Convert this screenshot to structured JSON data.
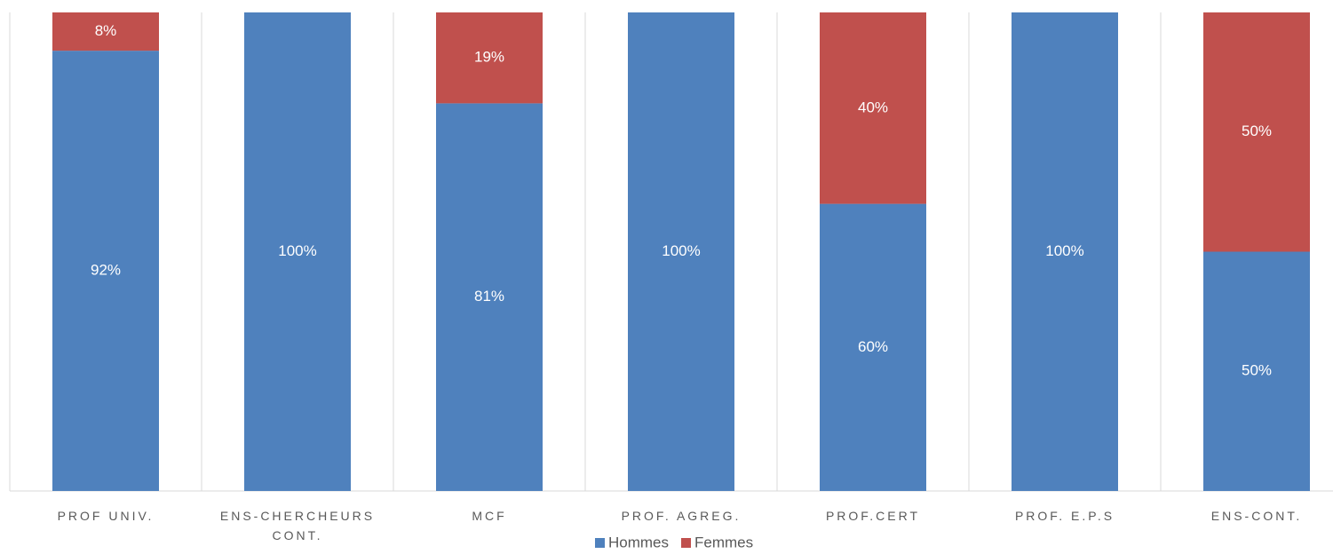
{
  "chart_data": {
    "type": "stacked_bar",
    "categories": [
      "PROF UNIV.",
      "ENS-CHERCHEURS CONT.",
      "MCF",
      "PROF. AGREG.",
      "PROF.CERT",
      "PROF. E.P.S",
      "ENS-CONT."
    ],
    "ylim": [
      0,
      100
    ],
    "grid": true,
    "legend": "bottom",
    "series": [
      {
        "name": "Hommes",
        "color": "#4f81bd",
        "values": [
          92,
          100,
          81,
          100,
          60,
          100,
          50
        ],
        "value_labels": [
          "92%",
          "100%",
          "81%",
          "100%",
          "60%",
          "100%",
          "50%"
        ]
      },
      {
        "name": "Femmes",
        "color": "#c0504d",
        "values": [
          8,
          0,
          19,
          0,
          40,
          0,
          50
        ],
        "value_labels": [
          "8%",
          null,
          "19%",
          null,
          "40%",
          null,
          "50%"
        ]
      }
    ]
  }
}
